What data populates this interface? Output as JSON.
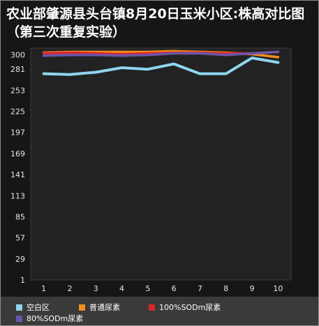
{
  "chart_data": {
    "type": "line",
    "title": "农业部肇源县头台镇8月20日玉米小区:株高对比图（第三次重复实验）",
    "xlabel": "",
    "ylabel": "",
    "categories": [
      "1",
      "2",
      "3",
      "4",
      "5",
      "6",
      "7",
      "8",
      "9",
      "10"
    ],
    "yticks": [
      1,
      29,
      57,
      85,
      113,
      141,
      169,
      197,
      225,
      253,
      281,
      300
    ],
    "ylim": [
      1,
      309
    ],
    "grid": false,
    "legend": "bottom",
    "series": [
      {
        "name": "空白区",
        "color": "#8fd4ee",
        "values": [
          275,
          274,
          277,
          283,
          281,
          288,
          275,
          275,
          296,
          290
        ]
      },
      {
        "name": "普通尿素",
        "color": "#f28e1c",
        "values": [
          303,
          304,
          304,
          304,
          304,
          305,
          304,
          303,
          301,
          297
        ]
      },
      {
        "name": "100%SODm尿素",
        "color": "#d9262e",
        "values": [
          302,
          303,
          302,
          301,
          302,
          303,
          303,
          302,
          302,
          304
        ]
      },
      {
        "name": "80%SODm尿素",
        "color": "#6b56a8",
        "values": [
          299,
          300,
          300,
          299,
          300,
          302,
          302,
          300,
          302,
          304
        ]
      }
    ]
  }
}
